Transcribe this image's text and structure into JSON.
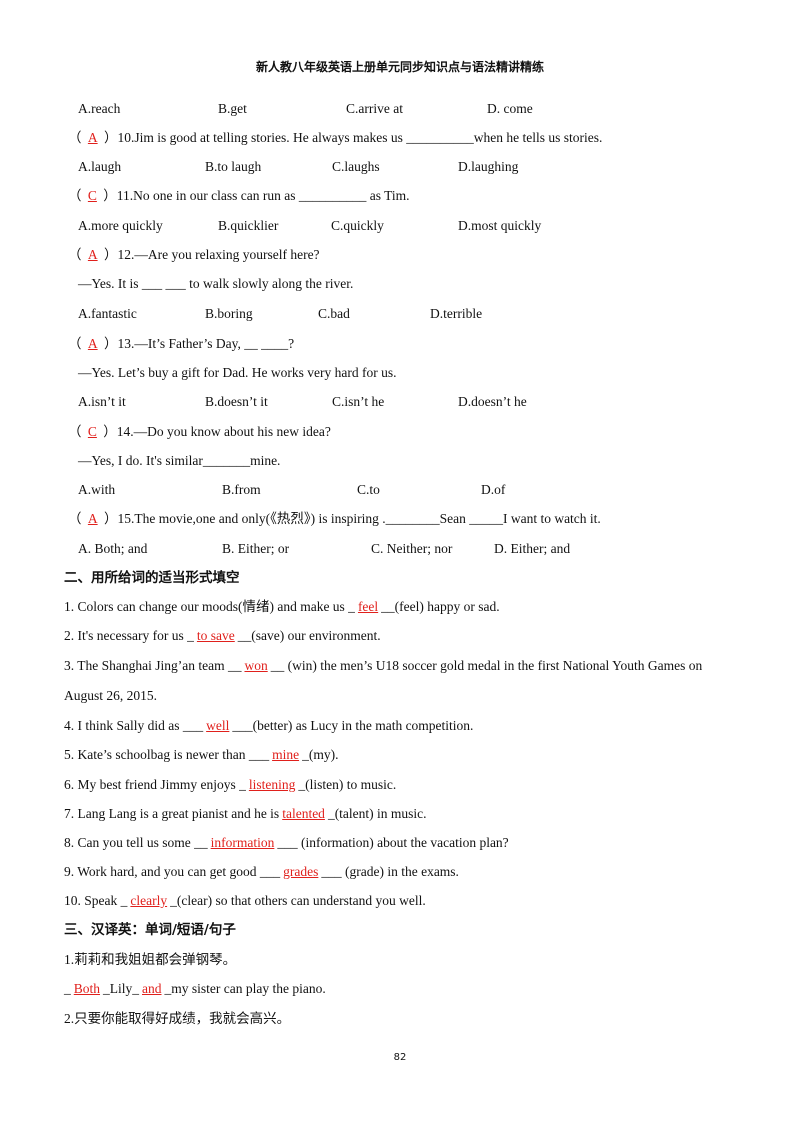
{
  "header": {
    "title": "新人教八年级英语上册单元同步知识点与语法精讲精练"
  },
  "lines": [
    {
      "options": [
        "A.reach",
        "B.get",
        "C.arrive at",
        "D. come"
      ]
    },
    {
      "parts": [
        "（ ",
        {
          "answer": "A"
        },
        " ）10.Jim is good at telling stories. He always makes us ",
        "__________",
        "when he tells us stories."
      ]
    },
    {
      "options": [
        "A.laugh",
        "B.to laugh",
        "C.laughs",
        "D.laughing"
      ]
    },
    {
      "parts": [
        "（ ",
        {
          "answer": "C"
        },
        " ）11.No one in our class can run as ",
        "__________",
        " as Tim."
      ]
    },
    {
      "options": [
        "A.more quickly",
        "B.quicklier",
        "C.quickly",
        "D.most quickly"
      ]
    },
    {
      "parts": [
        "（ ",
        {
          "answer": "A"
        },
        " ）12.—Are you relaxing yourself here?"
      ]
    },
    {
      "parts": [
        "—Yes. It is ___ ___ to walk slowly along the river."
      ]
    },
    {
      "options": [
        "A.fantastic",
        "B.boring",
        "C.bad",
        "D.terrible"
      ]
    },
    {
      "parts": [
        "（ ",
        {
          "answer": "A"
        },
        " ）13.—It’s Father’s Day, __ ____?"
      ]
    },
    {
      "parts": [
        "—Yes. Let’s buy a gift for Dad. He works very hard for us."
      ]
    },
    {
      "options": [
        "A.isn’t it",
        "B.doesn’t it",
        "C.isn’t he",
        "D.doesn’t he"
      ]
    },
    {
      "parts": [
        "（ ",
        {
          "answer": "C"
        },
        " ）14.—Do you know about his new idea?"
      ]
    },
    {
      "parts": [
        "—Yes, I do. It's similar_______mine."
      ]
    },
    {
      "options": [
        "A.with",
        "B.from",
        "C.to",
        "D.of"
      ]
    },
    {
      "parts": [
        "（ ",
        {
          "answer": "A"
        },
        " ）15.The movie,one and only(《热烈》) is inspiring .________Sean _____I want to watch it."
      ]
    },
    {
      "options": [
        "A. Both; and",
        "B. Either; or",
        "C. Neither; nor",
        "D. Either; and"
      ]
    },
    {
      "heading": "二、用所给词的适当形式填空"
    },
    {
      "parts": [
        "1. Colors can change our moods(情绪) and make us _",
        {
          "answer": "feel"
        },
        "__(feel) happy or sad."
      ]
    },
    {
      "parts": [
        "2. It's necessary for us _",
        {
          "answer": "to save"
        },
        "__(save) our environment."
      ]
    },
    {
      "parts": [
        "3. The Shanghai Jing’an team __",
        {
          "answer": "won"
        },
        "__ (win) the men’s U18 soccer gold medal in the first National Youth Games on"
      ]
    },
    {
      "parts": [
        "August 26, 2015."
      ]
    },
    {
      "parts": [
        "4. I think Sally did as ___",
        {
          "answer": "well"
        },
        "___(better) as Lucy in the math competition."
      ]
    },
    {
      "parts": [
        "5. Kate’s schoolbag is newer than ___",
        {
          "answer": "mine"
        },
        "_(my)."
      ]
    },
    {
      "parts": [
        "6. My best friend Jimmy enjoys _",
        {
          "answer": "listening"
        },
        "_(listen) to music."
      ]
    },
    {
      "parts": [
        "7. Lang Lang is a great pianist and he is",
        {
          "answer": "talented"
        },
        "_(talent) in music."
      ]
    },
    {
      "parts": [
        "8. Can you tell us some __",
        {
          "answer": "information"
        },
        "___ (information) about the vacation plan?"
      ]
    },
    {
      "parts": [
        "9. Work hard, and you can get good ___",
        {
          "answer": "grades"
        },
        "___ (grade) in the exams."
      ]
    },
    {
      "parts": [
        "10. Speak _",
        {
          "answer": "clearly"
        },
        "_(clear) so that others can understand you well."
      ]
    },
    {
      "heading": "三、汉译英：单词/短语/句子"
    },
    {
      "parts": [
        "1.莉莉和我姐姐都会弹钢琴。"
      ]
    },
    {
      "parts": [
        "_",
        {
          "answer": "Both"
        },
        "_Lily_",
        {
          "answer": "and"
        },
        "_my sister can play the piano."
      ]
    },
    {
      "parts": [
        "2.只要你能取得好成绩，我就会高兴。"
      ]
    }
  ],
  "footer": {
    "page": "82"
  }
}
